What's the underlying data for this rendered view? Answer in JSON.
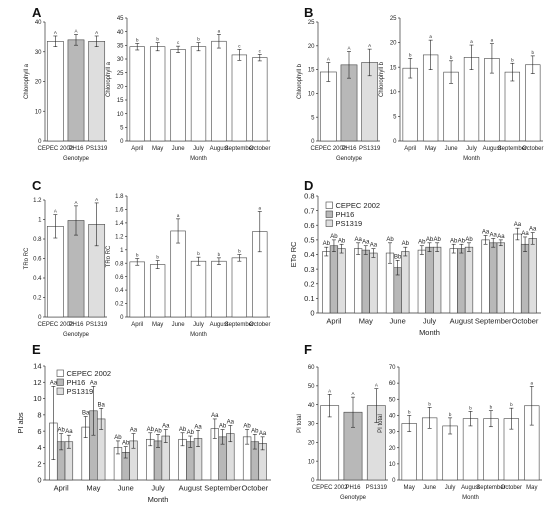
{
  "panel_letters": [
    "A",
    "B",
    "C",
    "D",
    "E",
    "F"
  ],
  "colors": {
    "white": "#ffffff",
    "gray": "#b8b8b8",
    "light": "#dedede",
    "edge": "#444444"
  },
  "chart_data": [
    {
      "panel": "A",
      "type": "bar",
      "title": "",
      "xlabel": "Genotype",
      "ylabel": "Chlorophyll a",
      "ylim": [
        0,
        40
      ],
      "yticks": [
        0,
        10,
        20,
        30,
        40
      ],
      "categories": [
        "CEPEC 2002",
        "PH16",
        "PS1319"
      ],
      "values": [
        33.5,
        34,
        33.5
      ],
      "errors": [
        1.8,
        1.8,
        1.8
      ],
      "labels": [
        "A",
        "A",
        "A"
      ],
      "bar_colors": [
        "white",
        "gray",
        "light"
      ]
    },
    {
      "panel": "A",
      "type": "bar",
      "title": "",
      "xlabel": "Month",
      "ylabel": "Chlorophyll a",
      "ylim": [
        0,
        45
      ],
      "yticks": [
        0,
        5,
        10,
        15,
        20,
        25,
        30,
        35,
        40,
        45
      ],
      "categories": [
        "April",
        "May",
        "June",
        "July",
        "August",
        "September",
        "October"
      ],
      "values": [
        34.5,
        34.5,
        33.5,
        34.5,
        36.5,
        31.5,
        30.5
      ],
      "errors": [
        1.2,
        1.5,
        1.2,
        1.5,
        2.5,
        2,
        1.2
      ],
      "labels": [
        "b",
        "b",
        "c",
        "b",
        "a",
        "c",
        "c"
      ]
    },
    {
      "panel": "B",
      "type": "bar",
      "title": "",
      "xlabel": "Genotype",
      "ylabel": "Chlorophyll b",
      "ylim": [
        0,
        25
      ],
      "yticks": [
        0,
        5,
        10,
        15,
        20,
        25
      ],
      "categories": [
        "CEPEC 2002",
        "PH16",
        "PS1319"
      ],
      "values": [
        14.5,
        16,
        16.5
      ],
      "errors": [
        2,
        2.8,
        2.8
      ],
      "labels": [
        "A",
        "A",
        "A"
      ],
      "bar_colors": [
        "white",
        "gray",
        "light"
      ]
    },
    {
      "panel": "B",
      "type": "bar",
      "title": "",
      "xlabel": "Month",
      "ylabel": "Chlorophyll b",
      "ylim": [
        0,
        25
      ],
      "yticks": [
        0,
        5,
        10,
        15,
        20,
        25
      ],
      "categories": [
        "April",
        "May",
        "June",
        "July",
        "August",
        "September",
        "October"
      ],
      "values": [
        14.8,
        17.5,
        14,
        17,
        16.8,
        14,
        15.5
      ],
      "errors": [
        2,
        3,
        2.3,
        2.5,
        3,
        1.8,
        1.8
      ],
      "labels": [
        "b",
        "a",
        "b",
        "a",
        "a",
        "b",
        "b"
      ]
    },
    {
      "panel": "C",
      "type": "bar",
      "title": "",
      "xlabel": "Genotype",
      "ylabel": "TRo RC",
      "ylim": [
        0,
        1.2
      ],
      "yticks": [
        0,
        0.2,
        0.4,
        0.6,
        0.8,
        1,
        1.2
      ],
      "categories": [
        "CEPEC 2002",
        "PH16",
        "PS1319"
      ],
      "values": [
        0.93,
        0.99,
        0.95
      ],
      "errors": [
        0.12,
        0.15,
        0.22
      ],
      "labels": [
        "A",
        "A",
        "A"
      ],
      "bar_colors": [
        "white",
        "gray",
        "light"
      ]
    },
    {
      "panel": "C",
      "type": "bar",
      "title": "",
      "xlabel": "Month",
      "ylabel": "TRo RC",
      "ylim": [
        0,
        1.8
      ],
      "yticks": [
        0,
        0.2,
        0.4,
        0.6,
        0.8,
        1,
        1.2,
        1.4,
        1.6,
        1.8
      ],
      "categories": [
        "April",
        "May",
        "June",
        "July",
        "August",
        "September",
        "October"
      ],
      "values": [
        0.82,
        0.78,
        1.28,
        0.83,
        0.83,
        0.88,
        1.27
      ],
      "errors": [
        0.05,
        0.06,
        0.18,
        0.06,
        0.05,
        0.05,
        0.3
      ],
      "labels": [
        "b",
        "b",
        "a",
        "b",
        "b",
        "b",
        "a"
      ]
    },
    {
      "panel": "D",
      "type": "bar",
      "title": "",
      "xlabel": "Month",
      "ylabel": "ETo RC",
      "ylim": [
        0,
        0.8
      ],
      "yticks": [
        0,
        0.1,
        0.2,
        0.3,
        0.4,
        0.5,
        0.6,
        0.7,
        0.8
      ],
      "categories": [
        "April",
        "May",
        "June",
        "July",
        "August",
        "September",
        "October"
      ],
      "legend": "top-left",
      "series": [
        {
          "name": "CEPEC 2002",
          "color": "white",
          "values": [
            0.42,
            0.44,
            0.41,
            0.43,
            0.44,
            0.5,
            0.54
          ],
          "errors": [
            0.03,
            0.04,
            0.07,
            0.03,
            0.03,
            0.03,
            0.04
          ],
          "labels": [
            "Ab",
            "Aa",
            "Ab",
            "Ab",
            "Ab",
            "Aa",
            "Aa"
          ]
        },
        {
          "name": "PH16",
          "color": "gray",
          "values": [
            0.46,
            0.43,
            0.31,
            0.45,
            0.44,
            0.48,
            0.47
          ],
          "errors": [
            0.04,
            0.03,
            0.05,
            0.03,
            0.03,
            0.03,
            0.05
          ],
          "labels": [
            "Ab",
            "Aa",
            "Bb",
            "Ab",
            "Ab",
            "Aa",
            "Aa"
          ]
        },
        {
          "name": "PS1319",
          "color": "light",
          "values": [
            0.44,
            0.41,
            0.42,
            0.45,
            0.45,
            0.48,
            0.51
          ],
          "errors": [
            0.03,
            0.03,
            0.03,
            0.03,
            0.03,
            0.02,
            0.04
          ],
          "labels": [
            "Ab",
            "Aa",
            "Ab",
            "Ab",
            "Ab",
            "Aa",
            "Aa"
          ]
        }
      ]
    },
    {
      "panel": "E",
      "type": "bar",
      "title": "",
      "xlabel": "Month",
      "ylabel": "PI abs",
      "ylim": [
        0,
        14
      ],
      "yticks": [
        0,
        2,
        4,
        6,
        8,
        10,
        12,
        14
      ],
      "categories": [
        "April",
        "May",
        "June",
        "July",
        "August",
        "September",
        "October"
      ],
      "legend": "top-left",
      "series": [
        {
          "name": "CEPEC 2002",
          "color": "white",
          "values": [
            7,
            6.5,
            4,
            5,
            5,
            6.3,
            5.3
          ],
          "errors": [
            4.5,
            1.3,
            0.8,
            0.8,
            0.8,
            1.2,
            0.9
          ],
          "labels": [
            "Aa",
            "Ba",
            "Ab",
            "Ab",
            "Ab",
            "Aa",
            "Ab"
          ]
        },
        {
          "name": "PH16",
          "color": "gray",
          "values": [
            4.7,
            8.5,
            3.4,
            4.8,
            4.7,
            5.3,
            4.7
          ],
          "errors": [
            1,
            3,
            0.7,
            0.8,
            0.7,
            0.9,
            0.9
          ],
          "labels": [
            "Ab",
            "Aa",
            "Ab",
            "Ab",
            "Ab",
            "Ab",
            "Ab"
          ]
        },
        {
          "name": "PS1319",
          "color": "light",
          "values": [
            4.7,
            7.5,
            4.8,
            5.4,
            5.1,
            5.7,
            4.5
          ],
          "errors": [
            0.8,
            1.3,
            0.9,
            0.8,
            1,
            1,
            0.8
          ],
          "labels": [
            "Aa",
            "Ba",
            "Aa",
            "Aa",
            "Aa",
            "Aa",
            "Aa"
          ]
        }
      ]
    },
    {
      "panel": "F",
      "type": "bar",
      "title": "",
      "xlabel": "Genotype",
      "ylabel": "PI total",
      "ylim": [
        0,
        60
      ],
      "yticks": [
        0,
        10,
        20,
        30,
        40,
        50,
        60
      ],
      "categories": [
        "CEPEC 2002",
        "PH16",
        "PS1319"
      ],
      "values": [
        39.5,
        36,
        39.5
      ],
      "errors": [
        6,
        8,
        9
      ],
      "labels": [
        "A",
        "A",
        "A"
      ],
      "bar_colors": [
        "white",
        "gray",
        "light"
      ]
    },
    {
      "panel": "F",
      "type": "bar",
      "title": "",
      "xlabel": "Month",
      "ylabel": "PI total",
      "ylim": [
        0,
        70
      ],
      "yticks": [
        0,
        10,
        20,
        30,
        40,
        50,
        60,
        70
      ],
      "categories": [
        "May",
        "June",
        "July",
        "August",
        "September",
        "October",
        "May"
      ],
      "values": [
        35,
        38.5,
        33.5,
        38,
        38,
        38,
        46
      ],
      "errors": [
        5,
        6.5,
        5,
        4.5,
        5,
        6.5,
        12
      ],
      "labels": [
        "b",
        "b",
        "b",
        "b",
        "b",
        "b",
        "a"
      ]
    }
  ]
}
